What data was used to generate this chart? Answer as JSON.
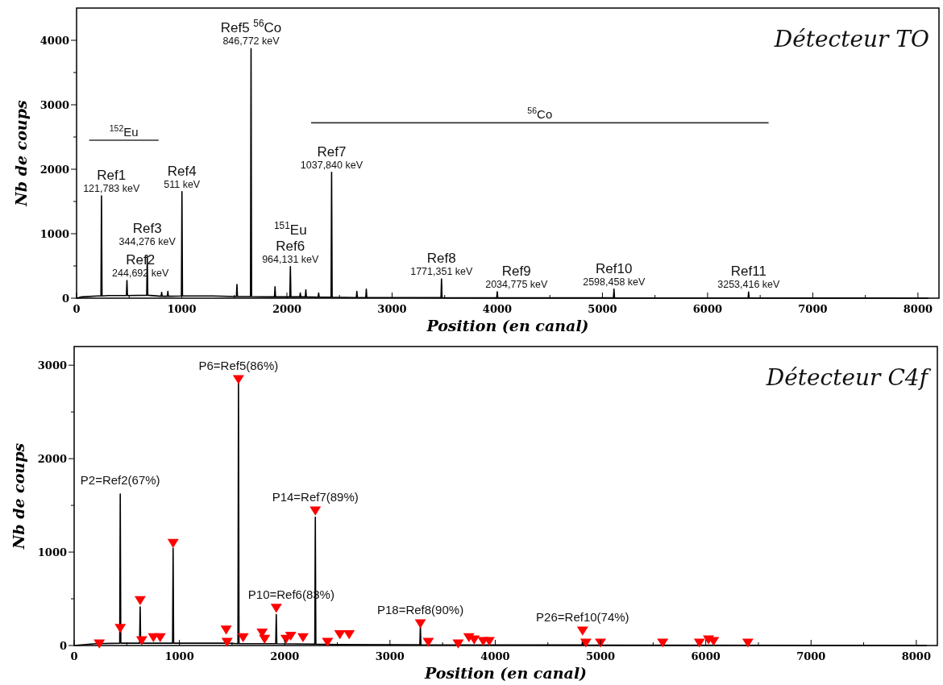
{
  "chart_data": [
    {
      "type": "line",
      "title": "Détecteur TO",
      "xlabel": "Position (en canal)",
      "ylabel": "Nb de coups",
      "xlim": [
        0,
        8200
      ],
      "ylim": [
        0,
        4500
      ],
      "xticks": [
        0,
        {
          "value": 500,
          "label": null
        },
        1000,
        {
          "value": 1500,
          "label": null
        },
        2000,
        {
          "value": 2500,
          "label": null
        },
        3000,
        {
          "value": 3500,
          "label": null
        },
        4000,
        {
          "value": 4500,
          "label": null
        },
        5000,
        {
          "value": 5500,
          "label": null
        },
        6000,
        {
          "value": 6500,
          "label": null
        },
        7000,
        {
          "value": 7500,
          "label": null
        },
        8000
      ],
      "yticks": [
        0,
        {
          "value": 500,
          "label": null
        },
        1000,
        {
          "value": 1500,
          "label": null
        },
        2000,
        {
          "value": 2500,
          "label": null
        },
        3000,
        {
          "value": 3500,
          "label": null
        },
        4000
      ],
      "series": [
        {
          "color": "#000000",
          "x": [
            0,
            50,
            200,
            232,
            237,
            242,
            300,
            474,
            479,
            484,
            667,
            672,
            677,
            804,
            809,
            814,
            863,
            868,
            873,
            997,
            1002,
            1007,
            1300,
            1520,
            1525,
            1530,
            1654,
            1659,
            1664,
            1882,
            1887,
            1892,
            2028,
            2033,
            2038,
            2122,
            2127,
            2132,
            2175,
            2180,
            2185,
            2297,
            2302,
            2307,
            2420,
            2425,
            2430,
            2660,
            2665,
            2670,
            2750,
            2755,
            2760,
            3465,
            3470,
            3475,
            3995,
            4000,
            4005,
            5105,
            5110,
            5115,
            6385,
            6390,
            6395,
            8100
          ],
          "values": [
            0,
            20,
            35,
            35,
            1587,
            35,
            40,
            40,
            274,
            40,
            45,
            654,
            45,
            30,
            90,
            30,
            30,
            106,
            30,
            35,
            1654,
            35,
            35,
            25,
            212,
            25,
            25,
            3870,
            25,
            20,
            178,
            20,
            20,
            490,
            20,
            20,
            80,
            20,
            20,
            130,
            20,
            15,
            80,
            15,
            15,
            1952,
            15,
            10,
            106,
            10,
            10,
            140,
            10,
            8,
            298,
            8,
            5,
            100,
            5,
            5,
            140,
            5,
            3,
            95,
            3,
            0
          ]
        },
        {
          "color": "#333333",
          "x": [
            120,
            780
          ],
          "values": [
            2450,
            2450
          ]
        },
        {
          "color": "#333333",
          "x": [
            2230,
            6580
          ],
          "values": [
            2720,
            2720
          ]
        }
      ],
      "annotations": [
        {
          "text": "$^{152}$Eu",
          "x": 450,
          "y": 2450
        },
        {
          "text": "$^{56}$Co",
          "x": 4405,
          "y": 2720
        },
        {
          "text": "Ref1\n121,783 keV",
          "x": 237,
          "y": 1587
        },
        {
          "text": "Ref2\n244,692 keV",
          "x": 479,
          "y": 274
        },
        {
          "text": "Ref3\n344,276 keV",
          "x": 672,
          "y": 654
        },
        {
          "text": "Ref4\n511 keV",
          "x": 1002,
          "y": 1654
        },
        {
          "text": "Ref5 $^{56}$Co\n846,772 keV",
          "x": 1659,
          "y": 3870
        },
        {
          "text": "$^{151}$Eu\nRef6\n964,131 keV",
          "x": 2033,
          "y": 490
        },
        {
          "text": "Ref7\n1037,840 keV",
          "x": 2425,
          "y": 1952
        },
        {
          "text": "Ref8\n1771,351 keV",
          "x": 3470,
          "y": 298
        },
        {
          "text": "Ref9\n2034,775 keV",
          "x": 4000,
          "y": 100
        },
        {
          "text": "Ref10\n2598,458 keV",
          "x": 5110,
          "y": 140
        },
        {
          "text": "Ref11\n3253,416 keV",
          "x": 6390,
          "y": 95
        }
      ]
    },
    {
      "type": "line",
      "title": "Détecteur C4f",
      "xlabel": "Position (en canal)",
      "ylabel": "Nb de coups",
      "xlim": [
        0,
        8200
      ],
      "ylim": [
        0,
        3200
      ],
      "xticks": [
        0,
        {
          "value": 500,
          "label": null
        },
        1000,
        {
          "value": 1500,
          "label": null
        },
        2000,
        {
          "value": 2500,
          "label": null
        },
        3000,
        {
          "value": 3500,
          "label": null
        },
        4000,
        {
          "value": 4500,
          "label": null
        },
        5000,
        {
          "value": 5500,
          "label": null
        },
        6000,
        {
          "value": 6500,
          "label": null
        },
        7000,
        {
          "value": 7500,
          "label": null
        },
        8000
      ],
      "yticks": [
        0,
        {
          "value": 500,
          "label": null
        },
        1000,
        {
          "value": 1500,
          "label": null
        },
        2000,
        {
          "value": 2500,
          "label": null
        },
        3000
      ],
      "series": [
        {
          "color": "#000000",
          "x": [
            0,
            200,
            433,
            438,
            443,
            622,
            627,
            632,
            935,
            940,
            945,
            1440,
            1450,
            1460,
            1556,
            1561,
            1566,
            1915,
            1920,
            1925,
            2286,
            2291,
            2296,
            2500,
            3284,
            3289,
            3294,
            4825,
            4830,
            4835,
            8100
          ],
          "values": [
            0,
            20,
            25,
            1621,
            25,
            25,
            413,
            25,
            25,
            1042,
            25,
            25,
            50,
            25,
            20,
            2828,
            20,
            20,
            331,
            20,
            15,
            1373,
            15,
            10,
            8,
            215,
            8,
            5,
            60,
            5,
            0
          ]
        },
        {
          "type": "scatter",
          "color": "#ff0000",
          "marker": "triangle",
          "x": [
            239,
            438,
            627,
            642,
            753,
            817,
            940,
            1444,
            1453,
            1561,
            1605,
            1786,
            1809,
            1920,
            2013,
            2057,
            2174,
            2291,
            2407,
            2524,
            2612,
            3289,
            3364,
            3648,
            3750,
            3800,
            3886,
            3943,
            4830,
            4861,
            5000,
            5591,
            5940,
            6026,
            6074,
            6400
          ],
          "values": [
            17,
            182,
            480,
            50,
            83,
            83,
            1092,
            165,
            33,
            2845,
            83,
            132,
            66,
            397,
            66,
            99,
            83,
            1439,
            33,
            116,
            116,
            232,
            33,
            17,
            83,
            60,
            43,
            43,
            155,
            26,
            26,
            26,
            26,
            60,
            43,
            26
          ]
        }
      ],
      "annotations": [
        {
          "text": "P2=Ref2(67%)",
          "x": 438,
          "y": 1621
        },
        {
          "text": "P6=Ref5(86%)",
          "x": 1561,
          "y": 2845
        },
        {
          "text": "P10=Ref6(83%)",
          "x": 1920,
          "y": 397
        },
        {
          "text": "P14=Ref7(89%)",
          "x": 2291,
          "y": 1439
        },
        {
          "text": "P18=Ref8(90%)",
          "x": 3289,
          "y": 232
        },
        {
          "text": "P26=Ref10(74%)",
          "x": 4830,
          "y": 155
        }
      ]
    }
  ]
}
